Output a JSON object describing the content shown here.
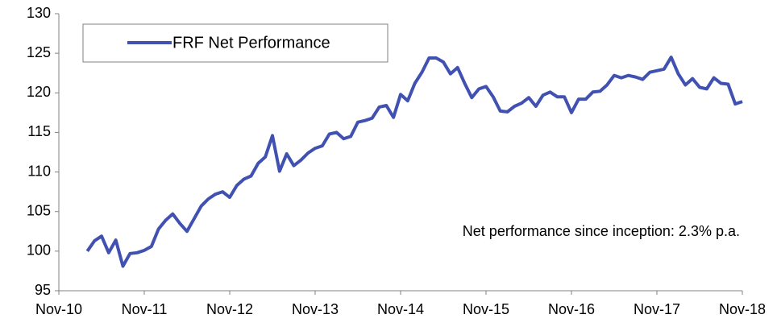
{
  "chart_data": {
    "type": "line",
    "annotation": "Net performance since inception: 2.3% p.a.",
    "categories": [
      "Nov-10",
      null,
      null,
      null,
      null,
      null,
      null,
      null,
      null,
      null,
      null,
      null,
      "Nov-11",
      null,
      null,
      null,
      null,
      null,
      null,
      null,
      null,
      null,
      null,
      null,
      "Nov-12",
      null,
      null,
      null,
      null,
      null,
      null,
      null,
      null,
      null,
      null,
      null,
      "Nov-13",
      null,
      null,
      null,
      null,
      null,
      null,
      null,
      null,
      null,
      null,
      null,
      "Nov-14",
      null,
      null,
      null,
      null,
      null,
      null,
      null,
      null,
      null,
      null,
      null,
      "Nov-15",
      null,
      null,
      null,
      null,
      null,
      null,
      null,
      null,
      null,
      null,
      null,
      "Nov-16",
      null,
      null,
      null,
      null,
      null,
      null,
      null,
      null,
      null,
      null,
      null,
      "Nov-17",
      null,
      null,
      null,
      null,
      null,
      null,
      null,
      null,
      null,
      null,
      null,
      "Nov-18"
    ],
    "series": [
      {
        "name": "FRF Net Performance",
        "color": "#4151b2",
        "values": [
          null,
          null,
          null,
          null,
          100,
          101.3,
          101.9,
          99.8,
          101.4,
          98.1,
          99.7,
          99.8,
          100.1,
          100.6,
          102.8,
          103.9,
          104.7,
          103.5,
          102.5,
          104.1,
          105.7,
          106.6,
          107.2,
          107.5,
          106.8,
          108.3,
          109.1,
          109.5,
          111.1,
          111.9,
          114.6,
          110.1,
          112.3,
          110.8,
          111.5,
          112.4,
          113.0,
          113.3,
          114.8,
          115.0,
          114.2,
          114.5,
          116.3,
          116.5,
          116.8,
          118.2,
          118.4,
          116.9,
          119.8,
          119.0,
          121.2,
          122.6,
          124.4,
          124.4,
          123.9,
          122.4,
          123.2,
          121.2,
          119.4,
          120.5,
          120.8,
          119.5,
          117.7,
          117.6,
          118.3,
          118.7,
          119.4,
          118.3,
          119.7,
          120.1,
          119.5,
          119.5,
          117.5,
          119.2,
          119.2,
          120.1,
          120.2,
          121.0,
          122.2,
          121.9,
          122.2,
          122.0,
          121.7,
          122.6,
          122.8,
          123.0,
          124.5,
          122.4,
          121.0,
          121.8,
          120.7,
          120.5,
          121.9,
          121.2,
          121.1,
          118.6,
          118.9
        ]
      }
    ],
    "ylim": [
      95,
      130
    ],
    "yticks": [
      95,
      100,
      105,
      110,
      115,
      120,
      125,
      130
    ],
    "grid": false,
    "legend": "top-left"
  }
}
